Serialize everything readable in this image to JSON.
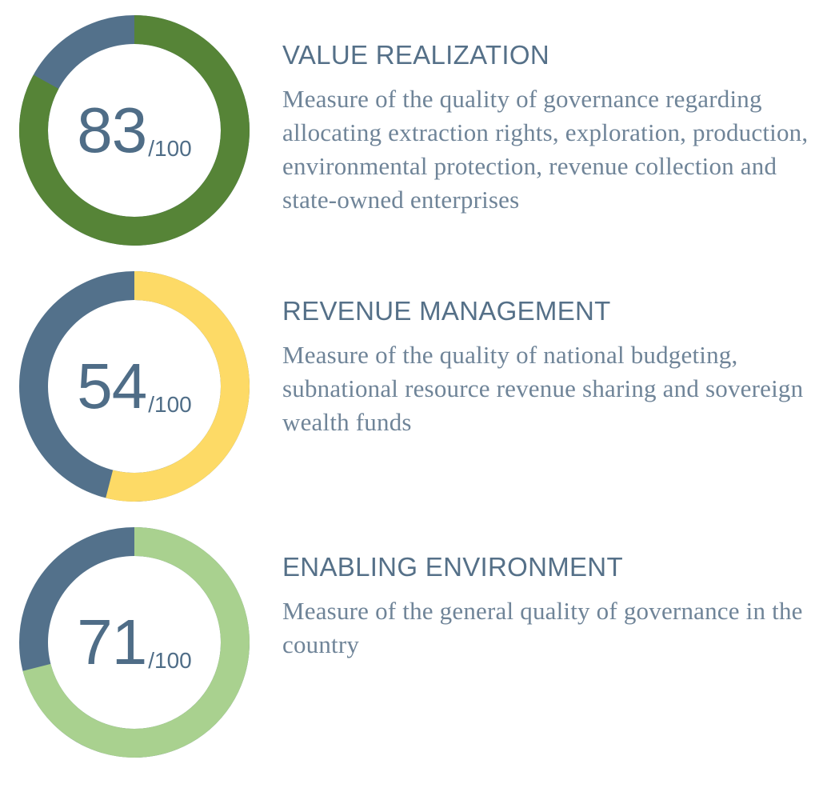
{
  "chart_data": [
    {
      "type": "donut",
      "title": "VALUE REALIZATION",
      "description": "Measure of the quality of governance regarding allocating extraction rights, exploration, production, environmental protection, revenue collection and state-owned enterprises",
      "value": 83,
      "max": 100,
      "value_label": "83",
      "max_label": "/100",
      "fill_color": "#568437",
      "remainder_color": "#53718b"
    },
    {
      "type": "donut",
      "title": "REVENUE MANAGEMENT",
      "description": "Measure of the quality of national budgeting, subnational resource revenue sharing and sovereign wealth funds",
      "value": 54,
      "max": 100,
      "value_label": "54",
      "max_label": "/100",
      "fill_color": "#fdda66",
      "remainder_color": "#53718b"
    },
    {
      "type": "donut",
      "title": "ENABLING ENVIRONMENT",
      "description": "Measure of the general quality of governance in the country",
      "value": 71,
      "max": 100,
      "value_label": "71",
      "max_label": "/100",
      "fill_color": "#a9d18f",
      "remainder_color": "#53718b"
    }
  ]
}
